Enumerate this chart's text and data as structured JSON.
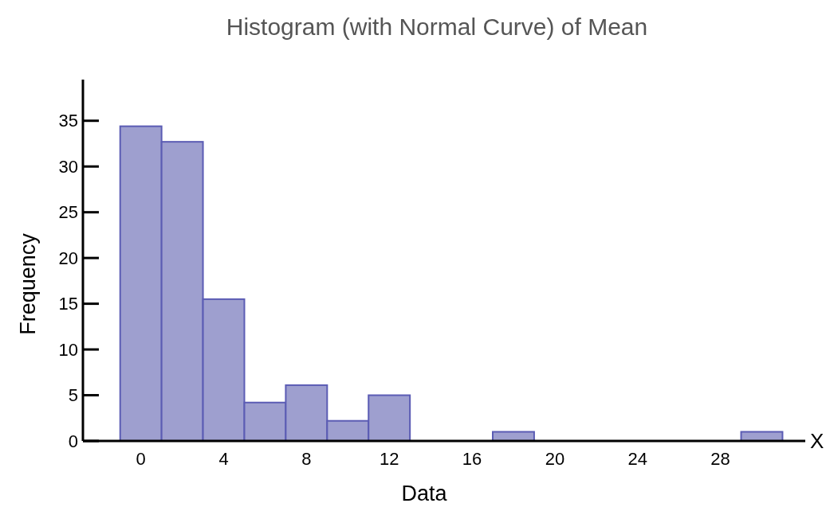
{
  "chart_data": {
    "type": "histogram",
    "title": "Histogram (with Normal Curve) of Mean",
    "xlabel": "Data",
    "ylabel": "Frequency",
    "bins": [
      -1,
      1,
      3,
      5,
      7,
      9,
      11,
      13,
      15,
      17,
      19,
      21,
      23,
      25,
      27,
      29,
      31
    ],
    "values": [
      34.4,
      32.7,
      15.5,
      4.2,
      6.1,
      2.2,
      5,
      0,
      0,
      1,
      0,
      0,
      0,
      0,
      0,
      1
    ],
    "color": "#9e9fcf",
    "xlim": [
      -2.8,
      32.1
    ],
    "xticks": [
      0,
      4,
      8,
      12,
      16,
      20,
      24,
      28
    ],
    "ylim": [
      0,
      39.5
    ],
    "yticks": [
      0,
      5,
      10,
      15,
      20,
      25,
      30,
      35
    ],
    "annotations": [
      "X"
    ],
    "grid": false
  }
}
